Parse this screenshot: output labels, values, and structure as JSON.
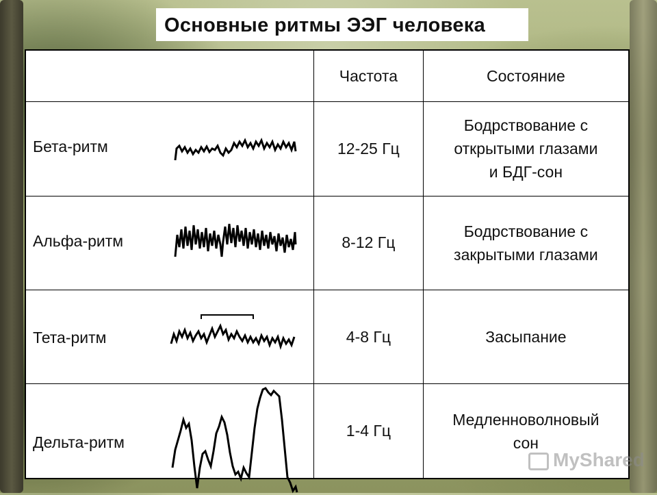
{
  "title": "Основные ритмы ЭЭГ человека",
  "table": {
    "headers": [
      "",
      "Частота",
      "Состояние"
    ],
    "rows": [
      {
        "name": "Бета-ритм",
        "frequency": "12-25 Гц",
        "state_lines": [
          "Бодрствование с",
          "открытыми глазами",
          "и БДГ-сон"
        ],
        "wave": "beta-wave-trace"
      },
      {
        "name": "Альфа-ритм",
        "frequency": "8-12 Гц",
        "state_lines": [
          "Бодрствование с",
          "закрытыми глазами"
        ],
        "wave": "alpha-wave-trace"
      },
      {
        "name": "Тета-ритм",
        "frequency": "4-8 Гц",
        "state_lines": [
          "Засыпание"
        ],
        "wave": "theta-wave-trace"
      },
      {
        "name": "Дельта-ритм",
        "frequency": "1-4 Гц",
        "state_lines": [
          "Медленноволновый",
          "сон"
        ],
        "wave": "delta-wave-trace"
      }
    ]
  },
  "watermark": "MyShared",
  "colors": {
    "table_border": "#000000",
    "background_foliage": "#9aa56c",
    "text": "#111111"
  }
}
